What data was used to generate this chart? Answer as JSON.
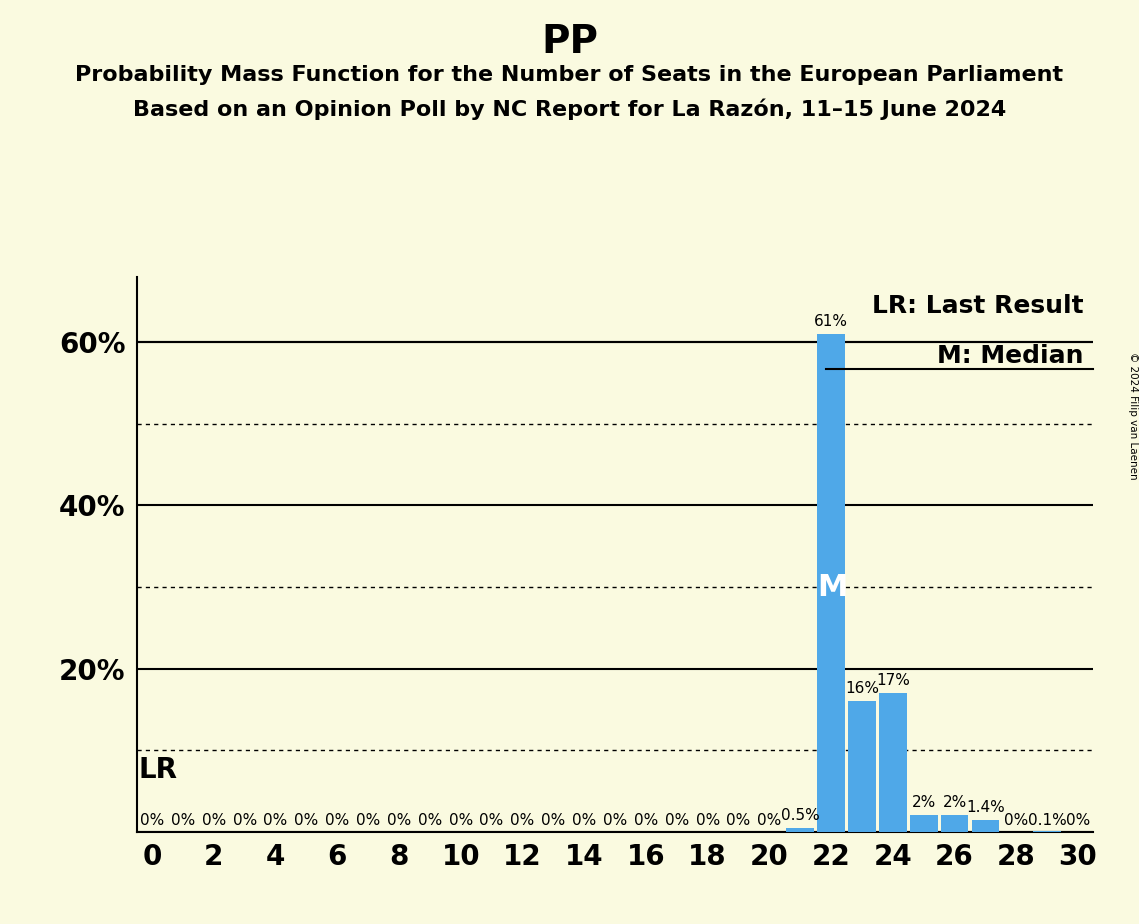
{
  "title": "PP",
  "subtitle1": "Probability Mass Function for the Number of Seats in the European Parliament",
  "subtitle2": "Based on an Opinion Poll by NC Report for La Razón, 11–15 June 2024",
  "background_color": "#FAFAE0",
  "bar_color": "#4FA8E8",
  "seats": [
    0,
    1,
    2,
    3,
    4,
    5,
    6,
    7,
    8,
    9,
    10,
    11,
    12,
    13,
    14,
    15,
    16,
    17,
    18,
    19,
    20,
    21,
    22,
    23,
    24,
    25,
    26,
    27,
    28,
    29,
    30
  ],
  "probabilities": [
    0,
    0,
    0,
    0,
    0,
    0,
    0,
    0,
    0,
    0,
    0,
    0,
    0,
    0,
    0,
    0,
    0,
    0,
    0,
    0,
    0,
    0.5,
    61,
    16,
    17,
    2,
    2,
    1.4,
    0,
    0.1,
    0
  ],
  "bar_labels": [
    "0%",
    "0%",
    "0%",
    "0%",
    "0%",
    "0%",
    "0%",
    "0%",
    "0%",
    "0%",
    "0%",
    "0%",
    "0%",
    "0%",
    "0%",
    "0%",
    "0%",
    "0%",
    "0%",
    "0%",
    "0%",
    "0.5%",
    "61%",
    "16%",
    "17%",
    "2%",
    "2%",
    "1.4%",
    "0%",
    "0.1%",
    "0%"
  ],
  "xlim": [
    -0.5,
    30.5
  ],
  "ylim": [
    0,
    68
  ],
  "yticks": [
    20,
    40,
    60
  ],
  "ytick_labels": [
    "20%",
    "40%",
    "60%"
  ],
  "solid_yticks": [
    0,
    20,
    40,
    60
  ],
  "dotted_yticks": [
    10,
    30,
    50
  ],
  "median_seat": 22,
  "lr_label": "LR",
  "median_label": "M",
  "legend_lr": "LR: Last Result",
  "legend_m": "M: Median",
  "copyright": "© 2024 Filip van Laenen",
  "title_fontsize": 28,
  "subtitle_fontsize": 16,
  "axis_fontsize": 20,
  "bar_label_fontsize": 11,
  "legend_fontsize": 18
}
